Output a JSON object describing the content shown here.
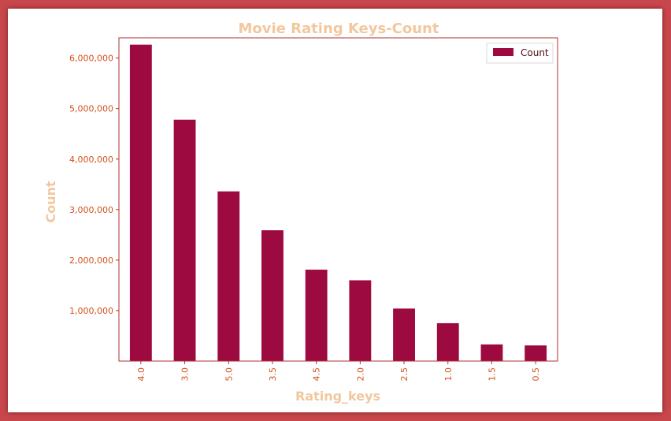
{
  "chart_data": {
    "type": "bar",
    "title": "Movie Rating Keys-Count",
    "xlabel": "Rating_keys",
    "ylabel": "Count",
    "categories": [
      "4.0",
      "3.0",
      "5.0",
      "3.5",
      "4.5",
      "2.0",
      "2.5",
      "1.0",
      "1.5",
      "0.5"
    ],
    "series": [
      {
        "name": "Count",
        "values": [
          6265000,
          4780000,
          3360000,
          2590000,
          1810000,
          1600000,
          1040000,
          750000,
          330000,
          310000
        ]
      }
    ],
    "yticks": [
      1000000,
      2000000,
      3000000,
      4000000,
      5000000,
      6000000
    ],
    "ytick_labels": [
      "1,000,000",
      "2,000,000",
      "3,000,000",
      "4,000,000",
      "5,000,000",
      "6,000,000"
    ],
    "ylim": [
      0,
      6400000
    ],
    "legend_position": "top-right",
    "grid": false,
    "bar_color": "#9c0a3f",
    "spine_color": "#b03030",
    "tick_color": "#d2531f",
    "title_color": "#f2c79e"
  }
}
